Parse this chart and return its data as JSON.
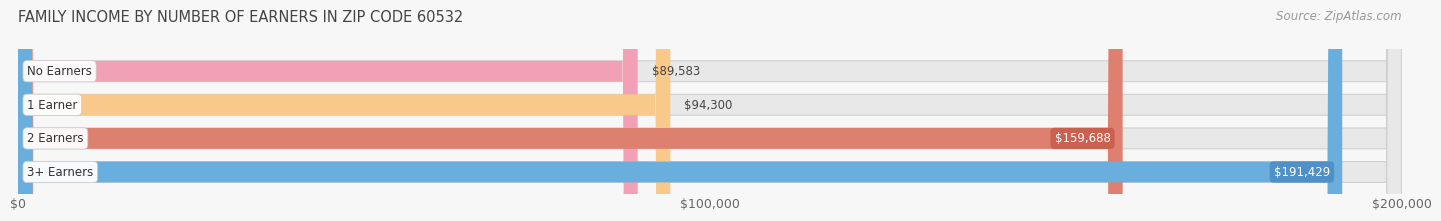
{
  "title": "FAMILY INCOME BY NUMBER OF EARNERS IN ZIP CODE 60532",
  "source": "Source: ZipAtlas.com",
  "categories": [
    "No Earners",
    "1 Earner",
    "2 Earners",
    "3+ Earners"
  ],
  "values": [
    89583,
    94300,
    159688,
    191429
  ],
  "labels": [
    "$89,583",
    "$94,300",
    "$159,688",
    "$191,429"
  ],
  "bar_colors": [
    "#f2a0b5",
    "#f8c98a",
    "#de8070",
    "#6aaedd"
  ],
  "label_outside": [
    true,
    true,
    false,
    false
  ],
  "label_badge_colors": [
    "none",
    "none",
    "#c96050",
    "#5090c8"
  ],
  "label_text_colors_outside": [
    "#555555",
    "#555555",
    "#ffffff",
    "#ffffff"
  ],
  "background_color": "#f7f7f7",
  "bar_bg_color": "#e8e8e8",
  "xlim": [
    0,
    200000
  ],
  "xticks": [
    0,
    100000,
    200000
  ],
  "xtick_labels": [
    "$0",
    "$100,000",
    "$200,000"
  ],
  "title_fontsize": 10.5,
  "source_fontsize": 8.5,
  "label_fontsize": 8.5,
  "tick_fontsize": 9,
  "bar_height": 0.62,
  "rounding_size": 2200
}
